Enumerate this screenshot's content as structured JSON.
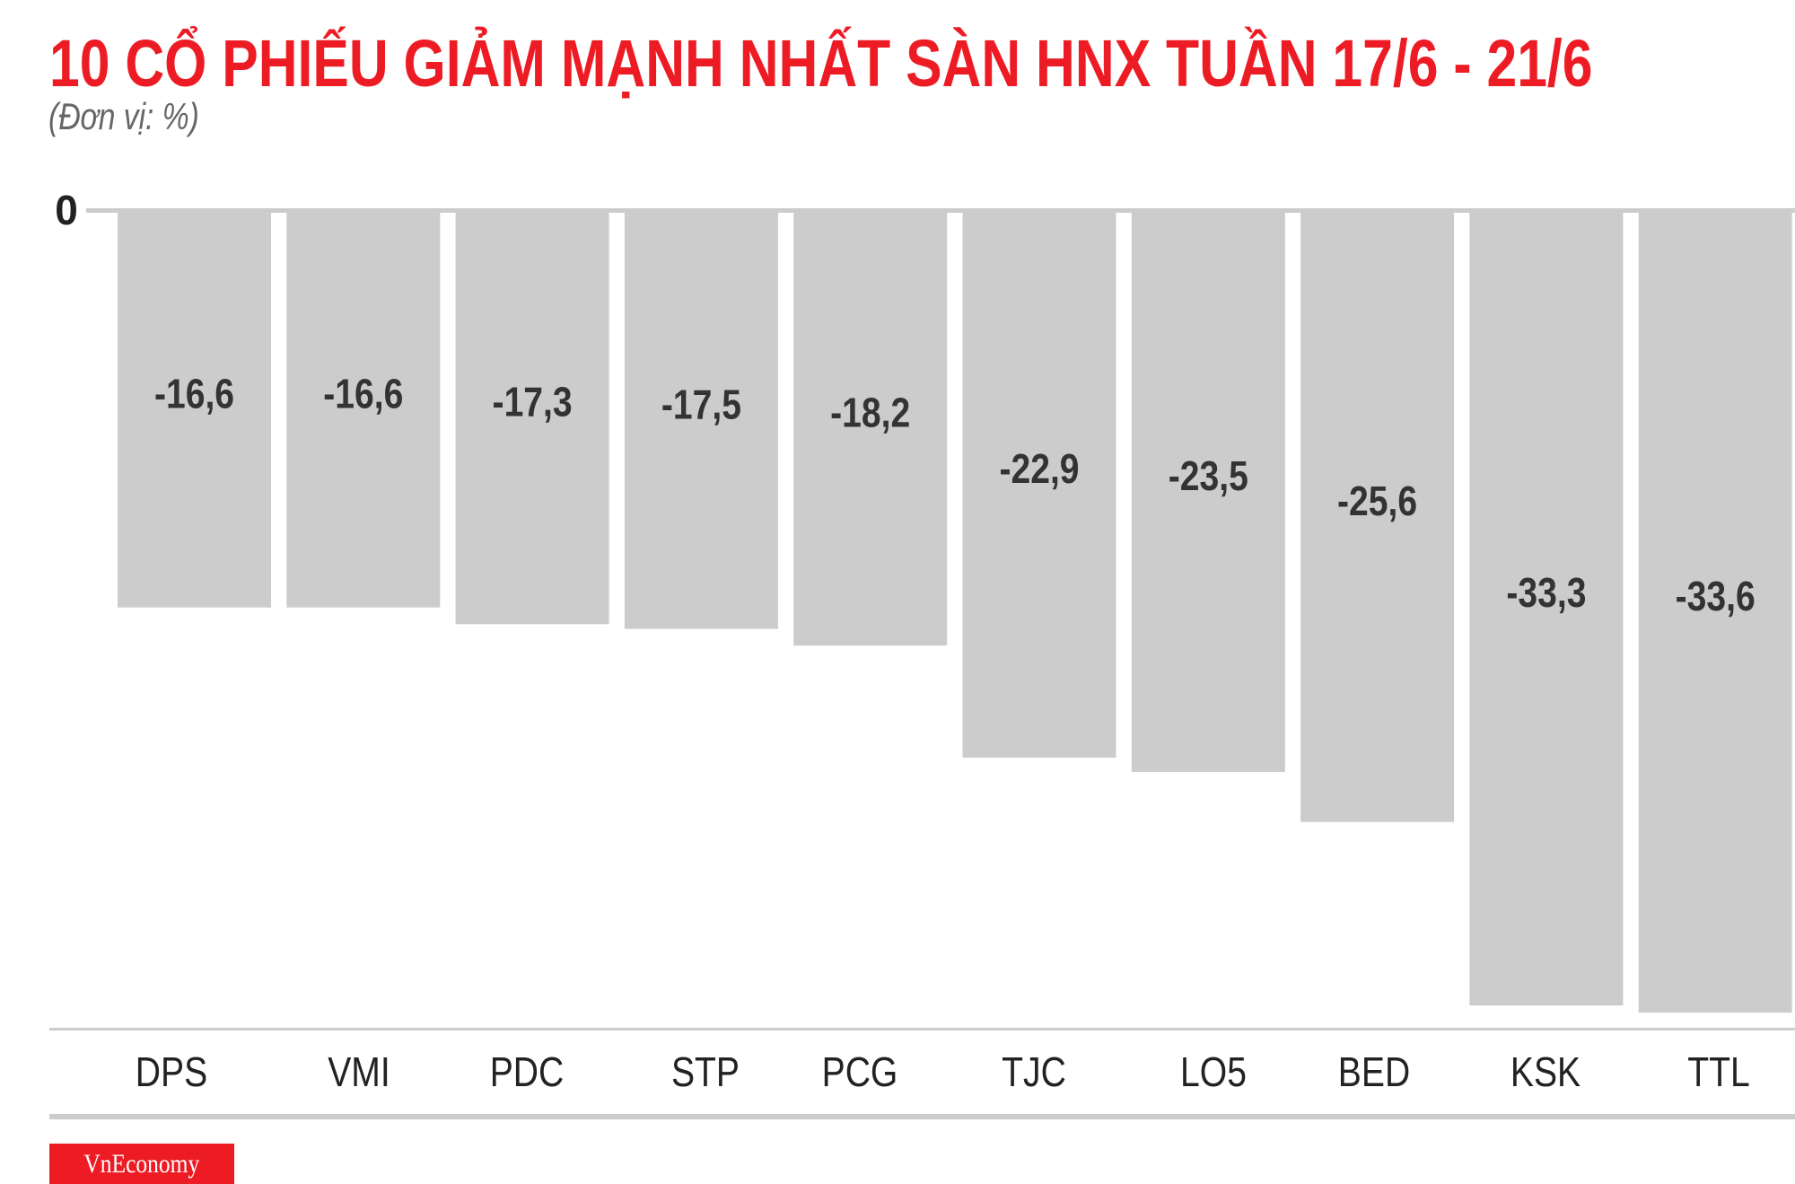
{
  "chart_data": {
    "type": "bar",
    "title": "10 CỔ PHIẾU GIẢM MẠNH NHẤT SÀN HNX TUẦN 17/6 - 21/6",
    "subtitle": "(Đơn vị: %)",
    "categories": [
      "DPS",
      "VMI",
      "PDC",
      "STP",
      "PCG",
      "TJC",
      "LO5",
      "BED",
      "KSK",
      "TTL"
    ],
    "values": [
      -16.6,
      -16.6,
      -17.3,
      -17.5,
      -18.2,
      -22.9,
      -23.5,
      -25.6,
      -33.3,
      -33.6
    ],
    "data_labels": [
      "-16,6",
      "-16,6",
      "-17,3",
      "-17,5",
      "-18,2",
      "-22,9",
      "-23,5",
      "-25,6",
      "-33,3",
      "-33,6"
    ],
    "y_tick_labels": [
      "0"
    ],
    "ylim": [
      -34,
      0
    ],
    "grid": false,
    "legend": "none",
    "colors": {
      "bar": "#cccccc",
      "title": "#ed1c24",
      "label": "#333333",
      "axis": "#cccccc"
    }
  },
  "brand": {
    "logo_text": "VnEconomy"
  }
}
